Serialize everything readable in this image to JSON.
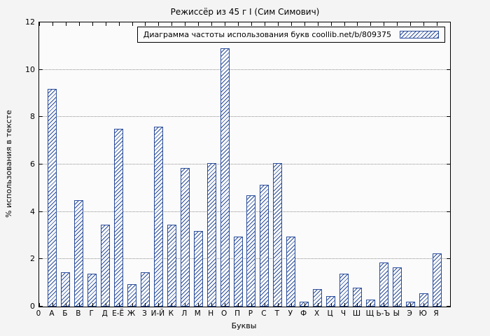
{
  "chart_data": {
    "type": "bar",
    "title": "Режиссёр из 45 г I (Сим Симович)",
    "legend_label": "Диаграмма частоты использования букв coollib.net/b/809375",
    "xlabel": "Буквы",
    "ylabel": "% использования в тексте",
    "ylim": [
      0,
      12
    ],
    "yticks": [
      0,
      2,
      4,
      6,
      8,
      10,
      12
    ],
    "origin_label": "0",
    "grid": true,
    "legend_position": "top-right",
    "bar_color": "#2a4d9b",
    "categories": [
      "А",
      "Б",
      "В",
      "Г",
      "Д",
      "Е-Ё",
      "Ж",
      "З",
      "И-Й",
      "К",
      "Л",
      "М",
      "Н",
      "О",
      "П",
      "Р",
      "С",
      "Т",
      "У",
      "Ф",
      "Х",
      "Ц",
      "Ч",
      "Ш",
      "Щ",
      "Ь-Ъ",
      "Ы",
      "Э",
      "Ю",
      "Я"
    ],
    "values": [
      9.2,
      1.45,
      4.5,
      1.4,
      3.45,
      7.5,
      0.95,
      1.45,
      7.6,
      3.45,
      5.85,
      3.2,
      6.05,
      10.9,
      2.95,
      4.7,
      5.15,
      6.05,
      2.95,
      0.2,
      0.75,
      0.45,
      1.4,
      0.8,
      0.3,
      1.85,
      1.65,
      0.2,
      0.55,
      2.25
    ]
  }
}
